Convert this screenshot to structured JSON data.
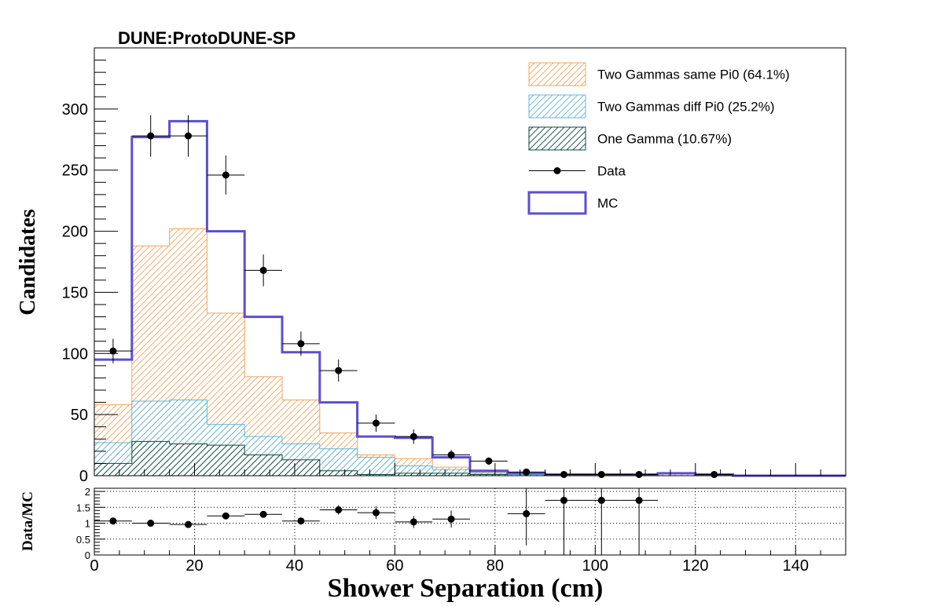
{
  "colors": {
    "same_pi0": "#f5a35c",
    "diff_pi0": "#5bb8e0",
    "one_gamma": "#0b4a3a",
    "mc": "#5b4fcf",
    "data": "#000000"
  },
  "chart_data": [
    {
      "type": "histogram",
      "title": "DUNE:ProtoDUNE-SP",
      "xlabel": "Shower Separation (cm)",
      "ylabel": "Candidates",
      "xlim": [
        0,
        150
      ],
      "ylim": [
        0,
        350
      ],
      "yticks": [
        0,
        50,
        100,
        150,
        200,
        250,
        300
      ],
      "xticks": [
        0,
        20,
        40,
        60,
        80,
        100,
        120,
        140
      ],
      "bin_edges": [
        0,
        7.5,
        15,
        22.5,
        30,
        37.5,
        45,
        52.5,
        60,
        67.5,
        75,
        82.5,
        90,
        97.5,
        105,
        112.5,
        120,
        127.5,
        135,
        142.5,
        150
      ],
      "legend": [
        {
          "key": "same_pi0",
          "label": "Two Gammas same Pi0 (64.1%)",
          "style": "hatch"
        },
        {
          "key": "diff_pi0",
          "label": "Two Gammas diff Pi0 (25.2%)",
          "style": "hatch"
        },
        {
          "key": "one_gamma",
          "label": "One Gamma (10.67%)",
          "style": "hatch"
        },
        {
          "key": "data",
          "label": "Data",
          "style": "marker"
        },
        {
          "key": "mc",
          "label": "MC",
          "style": "line"
        }
      ],
      "series": [
        {
          "name": "Two Gammas same Pi0",
          "key": "same_pi0",
          "type": "stacked_total",
          "values": [
            58,
            188,
            202,
            133,
            81,
            62,
            35,
            17,
            14,
            7,
            3,
            2,
            1,
            1,
            1,
            2,
            1,
            0,
            0,
            0
          ]
        },
        {
          "name": "Two Gammas diff Pi0",
          "key": "diff_pi0",
          "type": "stacked_total",
          "values": [
            27,
            61,
            62,
            42,
            32,
            26,
            22,
            15,
            8,
            5,
            2,
            1,
            1,
            0,
            0,
            0,
            0,
            0,
            0,
            0
          ]
        },
        {
          "name": "One Gamma",
          "key": "one_gamma",
          "type": "stacked_total",
          "values": [
            10,
            28,
            26,
            25,
            17,
            13,
            4,
            1,
            2,
            2,
            1,
            0,
            0,
            0,
            0,
            0,
            0,
            0,
            0,
            0
          ]
        },
        {
          "name": "MC",
          "key": "mc",
          "type": "step",
          "values": [
            95,
            277,
            290,
            200,
            130,
            101,
            60,
            32,
            31,
            15,
            4,
            2,
            1,
            1,
            1,
            2,
            1,
            0,
            0,
            0
          ]
        },
        {
          "name": "Data",
          "key": "data",
          "type": "points",
          "points": [
            {
              "x": 3.75,
              "y": 102,
              "err": 10
            },
            {
              "x": 11.25,
              "y": 278,
              "err": 17
            },
            {
              "x": 18.75,
              "y": 278,
              "err": 17
            },
            {
              "x": 26.25,
              "y": 246,
              "err": 16
            },
            {
              "x": 33.75,
              "y": 168,
              "err": 13
            },
            {
              "x": 41.25,
              "y": 108,
              "err": 10
            },
            {
              "x": 48.75,
              "y": 86,
              "err": 9
            },
            {
              "x": 56.25,
              "y": 43,
              "err": 7
            },
            {
              "x": 63.75,
              "y": 32,
              "err": 6
            },
            {
              "x": 71.25,
              "y": 17,
              "err": 4
            },
            {
              "x": 78.75,
              "y": 12,
              "err": 3
            },
            {
              "x": 86.25,
              "y": 3,
              "err": 2
            },
            {
              "x": 93.75,
              "y": 1,
              "err": 1
            },
            {
              "x": 101.25,
              "y": 1,
              "err": 1
            },
            {
              "x": 108.75,
              "y": 1,
              "err": 1
            },
            {
              "x": 123.75,
              "y": 1,
              "err": 1
            }
          ]
        }
      ]
    },
    {
      "type": "scatter",
      "title": "",
      "xlabel": "Shower Separation (cm)",
      "ylabel": "Data/MC",
      "xlim": [
        0,
        150
      ],
      "ylim": [
        0,
        2.1
      ],
      "yticks": [
        0,
        0.5,
        1,
        1.5,
        2
      ],
      "ytick_labels": [
        "0",
        "0.5",
        "1",
        "1.5",
        "2"
      ],
      "grid": true,
      "points": [
        {
          "x": 3.75,
          "y": 1.07,
          "err": 0.11
        },
        {
          "x": 11.25,
          "y": 1.0,
          "err": 0.06
        },
        {
          "x": 18.75,
          "y": 0.96,
          "err": 0.06
        },
        {
          "x": 26.25,
          "y": 1.23,
          "err": 0.08
        },
        {
          "x": 33.75,
          "y": 1.28,
          "err": 0.1
        },
        {
          "x": 41.25,
          "y": 1.07,
          "err": 0.11
        },
        {
          "x": 48.75,
          "y": 1.42,
          "err": 0.15
        },
        {
          "x": 56.25,
          "y": 1.33,
          "err": 0.2
        },
        {
          "x": 63.75,
          "y": 1.04,
          "err": 0.19
        },
        {
          "x": 71.25,
          "y": 1.13,
          "err": 0.27
        },
        {
          "x": 86.25,
          "y": 1.3,
          "err": 1.0
        },
        {
          "x": 93.75,
          "y": 1.72,
          "err": 1.72
        },
        {
          "x": 101.25,
          "y": 1.72,
          "err": 1.72
        },
        {
          "x": 108.75,
          "y": 1.72,
          "err": 1.72
        }
      ]
    }
  ]
}
